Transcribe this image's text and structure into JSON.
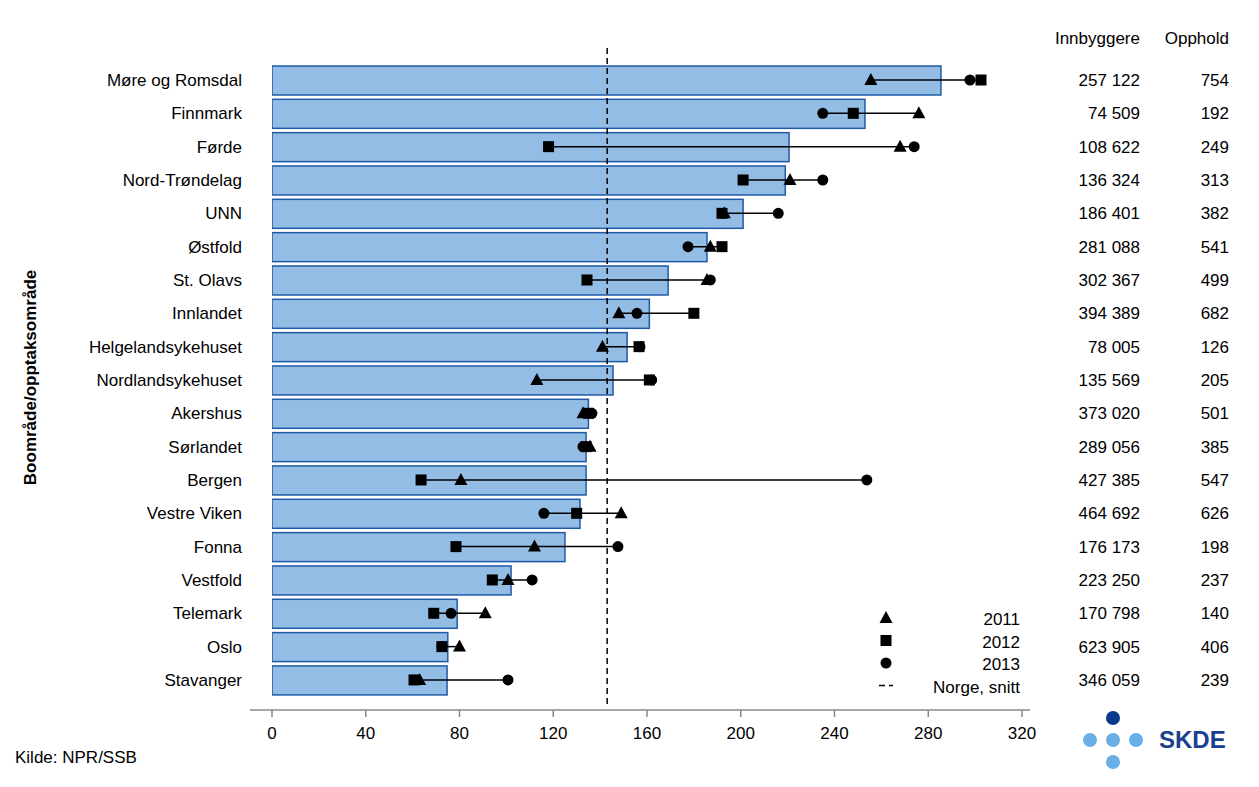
{
  "chart_data": {
    "type": "bar",
    "orientation": "horizontal",
    "y_label": "Boområde/opptaksområde",
    "source": "Kilde: NPR/SSB",
    "logo": "SKDE",
    "categories": [
      "Møre og Romsdal",
      "Finnmark",
      "Førde",
      "Nord-Trøndelag",
      "UNN",
      "Østfold",
      "St. Olavs",
      "Innlandet",
      "Helgelandsykehuset",
      "Nordlandsykehuset",
      "Akershus",
      "Sørlandet",
      "Bergen",
      "Vestre Viken",
      "Fonna",
      "Vestfold",
      "Telemark",
      "Oslo",
      "Stavanger"
    ],
    "values": [
      285.4,
      253,
      220.6,
      219,
      201,
      185.6,
      169,
      161,
      151.5,
      145.5,
      135,
      134,
      134,
      131.4,
      125,
      102,
      79,
      75,
      74.7
    ],
    "color": "#94bde6",
    "series": [
      {
        "name": "2011",
        "type": "scatter",
        "marker": "triangle",
        "color": "#000000",
        "values": [
          255.5,
          276,
          268,
          221,
          193,
          187,
          185.6,
          148,
          141,
          113,
          132.7,
          135.7,
          80.6,
          149,
          112,
          100.7,
          91,
          80,
          63
        ]
      },
      {
        "name": "2012",
        "type": "scatter",
        "marker": "square",
        "color": "#000000",
        "values": [
          302.5,
          248,
          118,
          201,
          192,
          192,
          134.4,
          180,
          156.6,
          161,
          135,
          134,
          63.6,
          130,
          78.5,
          94,
          69,
          72.5,
          60.6
        ]
      },
      {
        "name": "2013",
        "type": "scatter",
        "marker": "circle",
        "color": "#000000",
        "values": [
          297.8,
          235,
          274,
          235,
          216,
          177.5,
          187,
          155.7,
          157,
          162,
          136.5,
          132.7,
          253.8,
          116,
          147.6,
          111,
          76.4,
          72.5,
          100.7
        ]
      }
    ],
    "reference_line": {
      "name": "Norge, snitt",
      "value": 143,
      "line_style": "dashed"
    },
    "innbyggere": {
      "header": "Innbyggere",
      "values": [
        257122,
        74509,
        108622,
        136324,
        186401,
        281088,
        302367,
        394389,
        78005,
        135569,
        373020,
        289056,
        427385,
        464692,
        176173,
        223250,
        170798,
        623905,
        346059
      ],
      "value_labels": [
        "257 122",
        "74 509",
        "108 622",
        "136 324",
        "186 401",
        "281 088",
        "302 367",
        "394 389",
        "78 005",
        "135 569",
        "373 020",
        "289 056",
        "427 385",
        "464 692",
        "176 173",
        "223 250",
        "170 798",
        "623 905",
        "346 059"
      ]
    },
    "opphold": {
      "header": "Opphold",
      "values": [
        754,
        192,
        249,
        313,
        382,
        541,
        499,
        682,
        126,
        205,
        501,
        385,
        547,
        626,
        198,
        237,
        140,
        406,
        239
      ]
    },
    "xlim": [
      0,
      320
    ],
    "xticks": [
      0,
      40,
      80,
      120,
      160,
      200,
      240,
      280,
      320
    ],
    "grid": false,
    "legend": "bottom-right"
  }
}
